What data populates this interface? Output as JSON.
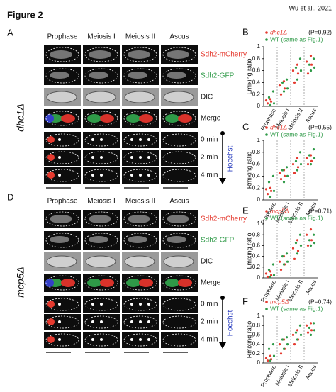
{
  "header": {
    "title": "Figure 2",
    "citation": "Wu et al., 2021"
  },
  "panels": [
    {
      "letter": "A",
      "strain": "dhc1Δ",
      "columns": [
        "Prophase",
        "Meiosis I",
        "Meiosis II",
        "Ascus"
      ],
      "channels": [
        "Sdh2-mCherry",
        "Sdh2-GFP",
        "DIC",
        "Merge"
      ],
      "times": [
        "0 min",
        "2 min",
        "4 min"
      ],
      "stain": "Hoechst"
    },
    {
      "letter": "D",
      "strain": "mcp5Δ",
      "columns": [
        "Prophase",
        "Meiosis I",
        "Meiosis II",
        "Ascus"
      ],
      "channels": [
        "Sdh2-mCherry",
        "Sdh2-GFP",
        "DIC",
        "Merge"
      ],
      "times": [
        "0 min",
        "2 min",
        "4 min"
      ],
      "stain": "Hoechst"
    }
  ],
  "chart_data": [
    {
      "type": "strip",
      "panel": "B",
      "annotation": "(P=0.92)",
      "ylabel": "Lmixing ratio",
      "categories": [
        "Prophase",
        "Meiosis I",
        "Meiosis II",
        "Ascus"
      ],
      "ylim": [
        0,
        1
      ],
      "yticks": [
        0,
        0.2,
        0.4,
        0.6,
        0.8,
        1
      ],
      "series": [
        {
          "name": "dhc1Δ",
          "color": "#e53a2f",
          "values": [
            [
              0.05,
              0.08,
              0.1,
              0.12
            ],
            [
              0.2,
              0.3,
              0.35,
              0.42
            ],
            [
              0.4,
              0.55,
              0.6,
              0.7
            ],
            [
              0.55,
              0.7,
              0.75,
              0.85
            ]
          ]
        },
        {
          "name": "WT (same as Fig.1)",
          "color": "#2f9a48",
          "values": [
            [
              0.02,
              0.05,
              0.15,
              0.25
            ],
            [
              0.25,
              0.3,
              0.4,
              0.45
            ],
            [
              0.45,
              0.6,
              0.65,
              0.8
            ],
            [
              0.6,
              0.65,
              0.7,
              0.8
            ]
          ]
        }
      ]
    },
    {
      "type": "strip",
      "panel": "C",
      "annotation": "(P=0.55)",
      "ylabel": "Rmixing ratio",
      "categories": [
        "Prophase",
        "Meiosis I",
        "Meiosis II",
        "Ascus"
      ],
      "ylim": [
        0,
        1
      ],
      "yticks": [
        0,
        0.2,
        0.4,
        0.6,
        0.8,
        1
      ],
      "series": [
        {
          "name": "dhc1Δ",
          "color": "#e53a2f",
          "values": [
            [
              0.1,
              0.15,
              0.18,
              0.2
            ],
            [
              0.35,
              0.4,
              0.45,
              0.5
            ],
            [
              0.45,
              0.55,
              0.6,
              0.7
            ],
            [
              0.6,
              0.65,
              0.7,
              0.75
            ]
          ]
        },
        {
          "name": "WT (same as Fig.1)",
          "color": "#2f9a48",
          "values": [
            [
              0.05,
              0.15,
              0.3,
              0.4
            ],
            [
              0.3,
              0.4,
              0.5,
              0.55
            ],
            [
              0.5,
              0.6,
              0.65,
              0.8
            ],
            [
              0.6,
              0.7,
              0.75,
              0.85
            ]
          ]
        }
      ]
    },
    {
      "type": "strip",
      "panel": "E",
      "annotation": "(P=0.71)",
      "ylabel": "Lmixing ratio",
      "categories": [
        "Prophase",
        "Meiosis I",
        "Meiosis II",
        "Ascus"
      ],
      "ylim": [
        0,
        1
      ],
      "yticks": [
        0,
        0.2,
        0.4,
        0.6,
        0.8,
        1
      ],
      "series": [
        {
          "name": "mcp5Δ",
          "color": "#e53a2f",
          "values": [
            [
              0.02,
              0.05,
              0.08,
              0.12
            ],
            [
              0.15,
              0.25,
              0.3,
              0.4
            ],
            [
              0.35,
              0.5,
              0.55,
              0.7
            ],
            [
              0.6,
              0.7,
              0.8,
              0.9
            ]
          ]
        },
        {
          "name": "WT (same as Fig.1)",
          "color": "#2f9a48",
          "values": [
            [
              0.02,
              0.05,
              0.15,
              0.25
            ],
            [
              0.25,
              0.3,
              0.4,
              0.45
            ],
            [
              0.45,
              0.6,
              0.65,
              0.8
            ],
            [
              0.6,
              0.65,
              0.7,
              0.8
            ]
          ]
        }
      ]
    },
    {
      "type": "strip",
      "panel": "F",
      "annotation": "(P=0.74)",
      "ylabel": "Rmixing ratio",
      "categories": [
        "Prophase",
        "Meiosis I",
        "Meiosis II",
        "Ascus"
      ],
      "ylim": [
        0,
        1
      ],
      "yticks": [
        0,
        0.2,
        0.4,
        0.6,
        0.8,
        1
      ],
      "series": [
        {
          "name": "mcp5Δ",
          "color": "#e53a2f",
          "values": [
            [
              0.05,
              0.08,
              0.1,
              0.15
            ],
            [
              0.2,
              0.3,
              0.4,
              0.5
            ],
            [
              0.4,
              0.5,
              0.6,
              0.7
            ],
            [
              0.65,
              0.7,
              0.8,
              0.85
            ]
          ]
        },
        {
          "name": "WT (same as Fig.1)",
          "color": "#2f9a48",
          "values": [
            [
              0.05,
              0.15,
              0.3,
              0.4
            ],
            [
              0.3,
              0.4,
              0.5,
              0.55
            ],
            [
              0.5,
              0.6,
              0.65,
              0.8
            ],
            [
              0.6,
              0.7,
              0.75,
              0.85
            ]
          ]
        }
      ]
    }
  ]
}
